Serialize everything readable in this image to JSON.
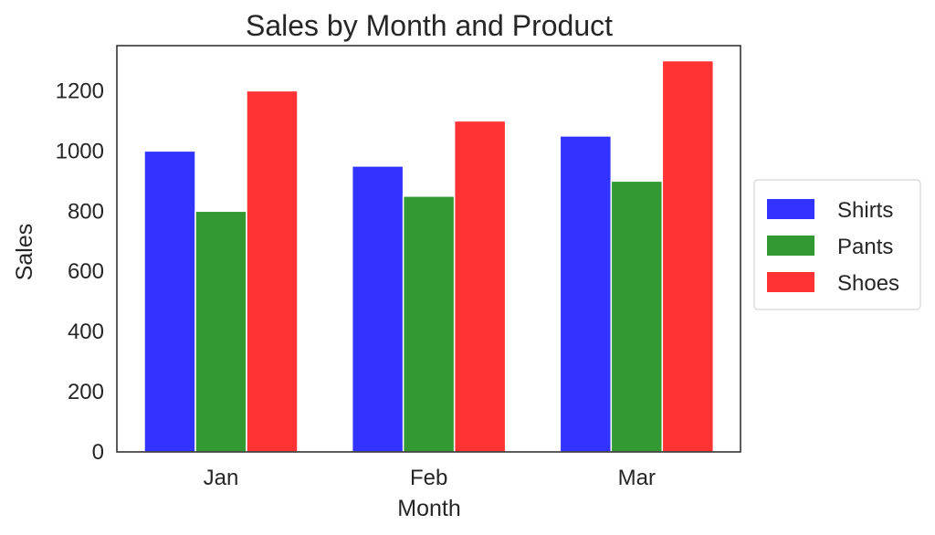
{
  "chart_data": {
    "type": "bar",
    "title": "Sales by Month and Product",
    "xlabel": "Month",
    "ylabel": "Sales",
    "categories": [
      "Jan",
      "Feb",
      "Mar"
    ],
    "series": [
      {
        "name": "Shirts",
        "values": [
          1000,
          950,
          1050
        ],
        "color": "#3333ff"
      },
      {
        "name": "Pants",
        "values": [
          800,
          850,
          900
        ],
        "color": "#339933"
      },
      {
        "name": "Shoes",
        "values": [
          1200,
          1100,
          1300
        ],
        "color": "#ff3333"
      }
    ],
    "yticks": [
      0,
      200,
      400,
      600,
      800,
      1000,
      1200
    ],
    "ylim": [
      0,
      1350
    ],
    "grid": false,
    "legend": "outside-right"
  }
}
